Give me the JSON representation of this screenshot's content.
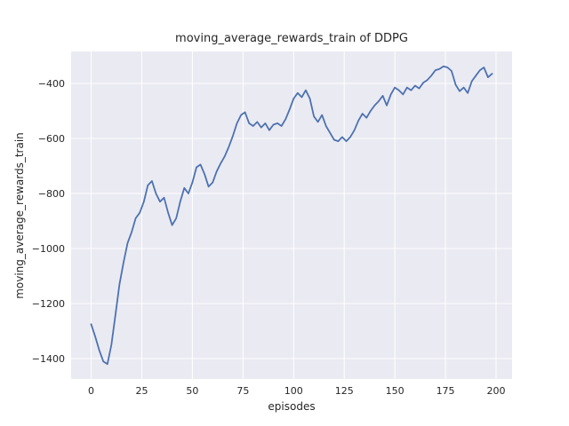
{
  "chart_data": {
    "type": "line",
    "title": "moving_average_rewards_train of DDPG",
    "xlabel": "episodes",
    "ylabel": "moving_average_rewards_train",
    "series_name": "moving average rewards (train)",
    "grid": true,
    "legend": "none",
    "xlim": [
      -9.9,
      207.9
    ],
    "ylim": [
      -1474,
      -284
    ],
    "xticks": [
      0,
      25,
      50,
      75,
      100,
      125,
      150,
      175,
      200
    ],
    "yticks": [
      -1400,
      -1200,
      -1000,
      -800,
      -600,
      -400
    ],
    "colors": {
      "line": "#4C72B0",
      "plot_background": "#EAEAF2",
      "grid": "#FFFFFF",
      "text": "#262626",
      "figure_background": "#FFFFFF"
    },
    "x": [
      0,
      2,
      4,
      6,
      8,
      10,
      12,
      14,
      16,
      18,
      20,
      22,
      24,
      26,
      28,
      30,
      32,
      34,
      36,
      38,
      40,
      42,
      44,
      46,
      48,
      50,
      52,
      54,
      56,
      58,
      60,
      62,
      64,
      66,
      68,
      70,
      72,
      74,
      76,
      78,
      80,
      82,
      84,
      86,
      88,
      90,
      92,
      94,
      96,
      98,
      100,
      102,
      104,
      106,
      108,
      110,
      112,
      114,
      116,
      118,
      120,
      122,
      124,
      126,
      128,
      130,
      132,
      134,
      136,
      138,
      140,
      142,
      144,
      146,
      148,
      150,
      152,
      154,
      156,
      158,
      160,
      162,
      164,
      166,
      168,
      170,
      172,
      174,
      176,
      178,
      180,
      182,
      184,
      186,
      188,
      190,
      192,
      194,
      196,
      198
    ],
    "y": [
      -1275,
      -1320,
      -1370,
      -1410,
      -1420,
      -1350,
      -1240,
      -1130,
      -1050,
      -980,
      -940,
      -890,
      -870,
      -830,
      -770,
      -755,
      -800,
      -830,
      -815,
      -870,
      -915,
      -890,
      -830,
      -780,
      -800,
      -760,
      -705,
      -695,
      -730,
      -775,
      -760,
      -720,
      -690,
      -665,
      -630,
      -590,
      -545,
      -515,
      -505,
      -545,
      -555,
      -540,
      -560,
      -545,
      -570,
      -550,
      -545,
      -555,
      -530,
      -495,
      -455,
      -435,
      -450,
      -425,
      -455,
      -520,
      -540,
      -515,
      -555,
      -580,
      -605,
      -610,
      -595,
      -610,
      -595,
      -570,
      -535,
      -510,
      -525,
      -500,
      -480,
      -465,
      -445,
      -480,
      -440,
      -415,
      -425,
      -440,
      -415,
      -425,
      -408,
      -418,
      -398,
      -388,
      -372,
      -352,
      -348,
      -338,
      -342,
      -355,
      -405,
      -428,
      -415,
      -435,
      -392,
      -372,
      -352,
      -342,
      -378,
      -365
    ]
  }
}
